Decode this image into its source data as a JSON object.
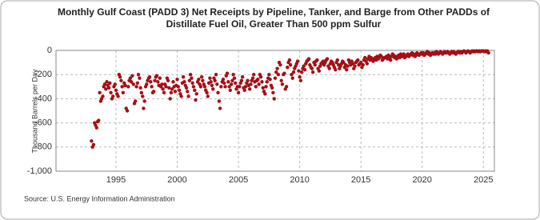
{
  "chart_data": {
    "type": "scatter",
    "title": [
      "Monthly Gulf Coast (PADD 3) Net Receipts by Pipeline, Tanker, and Barge from Other PADDs of",
      "Distillate Fuel Oil, Greater Than 500 ppm Sulfur"
    ],
    "y_label": "Thousand Barrels per Day",
    "source": "Source: U.S. Energy Information Administration",
    "color": "#a50f15",
    "grid": true,
    "xlim": [
      1990.1,
      2025.9
    ],
    "xticks": [
      1995,
      2000,
      2005,
      2010,
      2015,
      2020,
      2025
    ],
    "ylim": [
      -1000,
      0
    ],
    "yticks": [
      {
        "value": -1000,
        "label": "-1,000"
      },
      -800,
      -600,
      -400,
      -200,
      0
    ],
    "x": [
      1993,
      1993.08,
      1993.17,
      1993.25,
      1993.33,
      1993.42,
      1993.5,
      1993.58,
      1993.67,
      1993.75,
      1993.83,
      1993.92,
      1994,
      1994.08,
      1994.17,
      1994.25,
      1994.33,
      1994.42,
      1994.5,
      1994.58,
      1994.67,
      1994.75,
      1994.83,
      1994.92,
      1995,
      1995.08,
      1995.17,
      1995.25,
      1995.33,
      1995.42,
      1995.5,
      1995.58,
      1995.67,
      1995.75,
      1995.83,
      1995.92,
      1996,
      1996.08,
      1996.17,
      1996.25,
      1996.33,
      1996.42,
      1996.5,
      1996.58,
      1996.67,
      1996.75,
      1996.83,
      1996.92,
      1997,
      1997.08,
      1997.17,
      1997.25,
      1997.33,
      1997.42,
      1997.5,
      1997.58,
      1997.67,
      1997.75,
      1997.83,
      1997.92,
      1998,
      1998.08,
      1998.17,
      1998.25,
      1998.33,
      1998.42,
      1998.5,
      1998.58,
      1998.67,
      1998.75,
      1998.83,
      1998.92,
      1999,
      1999.08,
      1999.17,
      1999.25,
      1999.33,
      1999.42,
      1999.5,
      1999.58,
      1999.67,
      1999.75,
      1999.83,
      1999.92,
      2000,
      2000.08,
      2000.17,
      2000.25,
      2000.33,
      2000.42,
      2000.5,
      2000.58,
      2000.67,
      2000.75,
      2000.83,
      2000.92,
      2001,
      2001.08,
      2001.17,
      2001.25,
      2001.33,
      2001.42,
      2001.5,
      2001.58,
      2001.67,
      2001.75,
      2001.83,
      2001.92,
      2002,
      2002.08,
      2002.17,
      2002.25,
      2002.33,
      2002.42,
      2002.5,
      2002.58,
      2002.67,
      2002.75,
      2002.83,
      2002.92,
      2003,
      2003.08,
      2003.17,
      2003.25,
      2003.33,
      2003.42,
      2003.5,
      2003.58,
      2003.67,
      2003.75,
      2003.83,
      2003.92,
      2004,
      2004.08,
      2004.17,
      2004.25,
      2004.33,
      2004.42,
      2004.5,
      2004.58,
      2004.67,
      2004.75,
      2004.83,
      2004.92,
      2005,
      2005.08,
      2005.17,
      2005.25,
      2005.33,
      2005.42,
      2005.5,
      2005.58,
      2005.67,
      2005.75,
      2005.83,
      2005.92,
      2006,
      2006.08,
      2006.17,
      2006.25,
      2006.33,
      2006.42,
      2006.5,
      2006.58,
      2006.67,
      2006.75,
      2006.83,
      2006.92,
      2007,
      2007.08,
      2007.17,
      2007.25,
      2007.33,
      2007.42,
      2007.5,
      2007.58,
      2007.67,
      2007.75,
      2007.83,
      2007.92,
      2008,
      2008.08,
      2008.17,
      2008.25,
      2008.33,
      2008.42,
      2008.5,
      2008.58,
      2008.67,
      2008.75,
      2008.83,
      2008.92,
      2009,
      2009.08,
      2009.17,
      2009.25,
      2009.33,
      2009.42,
      2009.5,
      2009.58,
      2009.67,
      2009.75,
      2009.83,
      2009.92,
      2010,
      2010.08,
      2010.17,
      2010.25,
      2010.33,
      2010.42,
      2010.5,
      2010.58,
      2010.67,
      2010.75,
      2010.83,
      2010.92,
      2011,
      2011.08,
      2011.17,
      2011.25,
      2011.33,
      2011.42,
      2011.5,
      2011.58,
      2011.67,
      2011.75,
      2011.83,
      2011.92,
      2012,
      2012.08,
      2012.17,
      2012.25,
      2012.33,
      2012.42,
      2012.5,
      2012.58,
      2012.67,
      2012.75,
      2012.83,
      2012.92,
      2013,
      2013.08,
      2013.17,
      2013.25,
      2013.33,
      2013.42,
      2013.5,
      2013.58,
      2013.67,
      2013.75,
      2013.83,
      2013.92,
      2014,
      2014.08,
      2014.17,
      2014.25,
      2014.33,
      2014.42,
      2014.5,
      2014.58,
      2014.67,
      2014.75,
      2014.83,
      2014.92,
      2015,
      2015.08,
      2015.17,
      2015.25,
      2015.33,
      2015.42,
      2015.5,
      2015.58,
      2015.67,
      2015.75,
      2015.83,
      2015.92,
      2016,
      2016.08,
      2016.17,
      2016.25,
      2016.33,
      2016.42,
      2016.5,
      2016.58,
      2016.67,
      2016.75,
      2016.83,
      2016.92,
      2017,
      2017.08,
      2017.17,
      2017.25,
      2017.33,
      2017.42,
      2017.5,
      2017.58,
      2017.67,
      2017.75,
      2017.83,
      2017.92,
      2018,
      2018.08,
      2018.17,
      2018.25,
      2018.33,
      2018.42,
      2018.5,
      2018.58,
      2018.67,
      2018.75,
      2018.83,
      2018.92,
      2019,
      2019.08,
      2019.17,
      2019.25,
      2019.33,
      2019.42,
      2019.5,
      2019.58,
      2019.67,
      2019.75,
      2019.83,
      2019.92,
      2020,
      2020.08,
      2020.17,
      2020.25,
      2020.33,
      2020.42,
      2020.5,
      2020.58,
      2020.67,
      2020.75,
      2020.83,
      2020.92,
      2021,
      2021.08,
      2021.17,
      2021.25,
      2021.33,
      2021.42,
      2021.5,
      2021.58,
      2021.67,
      2021.75,
      2021.83,
      2021.92,
      2022,
      2022.08,
      2022.17,
      2022.25,
      2022.33,
      2022.42,
      2022.5,
      2022.58,
      2022.67,
      2022.75,
      2022.83,
      2022.92,
      2023,
      2023.08,
      2023.17,
      2023.25,
      2023.33,
      2023.42,
      2023.5,
      2023.58,
      2023.67,
      2023.75,
      2023.83,
      2023.92,
      2024,
      2024.08,
      2024.17,
      2024.25,
      2024.33,
      2024.42,
      2024.5,
      2024.58,
      2024.67,
      2024.75,
      2024.83,
      2024.92,
      2025,
      2025.08,
      2025.17,
      2025.25,
      2025.33,
      2025.42
    ],
    "values": [
      -750,
      -800,
      -780,
      -600,
      -620,
      -640,
      -590,
      -580,
      -350,
      -420,
      -400,
      -380,
      -300,
      -280,
      -320,
      -260,
      -290,
      -310,
      -270,
      -350,
      -400,
      -380,
      -300,
      -280,
      -330,
      -360,
      -380,
      -200,
      -220,
      -250,
      -300,
      -350,
      -270,
      -290,
      -480,
      -500,
      -300,
      -250,
      -230,
      -260,
      -210,
      -280,
      -440,
      -420,
      -300,
      -270,
      -200,
      -230,
      -310,
      -350,
      -380,
      -480,
      -420,
      -300,
      -280,
      -250,
      -230,
      -220,
      -260,
      -300,
      -350,
      -340,
      -250,
      -220,
      -210,
      -260,
      -290,
      -230,
      -300,
      -280,
      -320,
      -350,
      -280,
      -300,
      -230,
      -250,
      -310,
      -400,
      -350,
      -320,
      -260,
      -300,
      -340,
      -290,
      -240,
      -300,
      -330,
      -360,
      -380,
      -270,
      -220,
      -260,
      -290,
      -310,
      -340,
      -380,
      -250,
      -200,
      -230,
      -270,
      -300,
      -330,
      -410,
      -360,
      -260,
      -240,
      -280,
      -300,
      -220,
      -250,
      -280,
      -300,
      -330,
      -350,
      -380,
      -270,
      -230,
      -260,
      -290,
      -320,
      -230,
      -250,
      -200,
      -280,
      -350,
      -420,
      -480,
      -300,
      -260,
      -240,
      -270,
      -300,
      -210,
      -190,
      -260,
      -300,
      -330,
      -280,
      -250,
      -200,
      -230,
      -270,
      -320,
      -300,
      -350,
      -300,
      -270,
      -250,
      -220,
      -310,
      -330,
      -300,
      -270,
      -250,
      -290,
      -320,
      -280,
      -250,
      -230,
      -200,
      -260,
      -300,
      -250,
      -240,
      -280,
      -200,
      -220,
      -260,
      -310,
      -340,
      -360,
      -300,
      -260,
      -230,
      -200,
      -240,
      -290,
      -310,
      -350,
      -400,
      -230,
      -180,
      -150,
      -200,
      -100,
      -120,
      -250,
      -280,
      -200,
      -190,
      -320,
      -300,
      -140,
      -100,
      -80,
      -120,
      -200,
      -230,
      -180,
      -150,
      -130,
      -110,
      -90,
      -170,
      -220,
      -250,
      -180,
      -150,
      -130,
      -160,
      -110,
      -90,
      -80,
      -70,
      -120,
      -140,
      -150,
      -180,
      -100,
      -120,
      -90,
      -80,
      -150,
      -170,
      -130,
      -110,
      -100,
      -90,
      -120,
      -100,
      -80,
      -70,
      -130,
      -150,
      -110,
      -90,
      -100,
      -120,
      -140,
      -160,
      -100,
      -80,
      -120,
      -150,
      -130,
      -110,
      -90,
      -100,
      -140,
      -120,
      -160,
      -130,
      -80,
      -100,
      -120,
      -90,
      -110,
      -150,
      -130,
      -100,
      -90,
      -80,
      -120,
      -110,
      -100,
      -140,
      -120,
      -80,
      -60,
      -90,
      -110,
      -70,
      -50,
      -80,
      -60,
      -70,
      -90,
      -70,
      -60,
      -80,
      -50,
      -70,
      -60,
      -40,
      -50,
      -80,
      -70,
      -60,
      -60,
      -50,
      -70,
      -40,
      -60,
      -80,
      -50,
      -30,
      -40,
      -60,
      -50,
      -70,
      -50,
      -40,
      -60,
      -30,
      -50,
      -40,
      -30,
      -60,
      -50,
      -40,
      -30,
      -50,
      -40,
      -30,
      -20,
      -40,
      -30,
      -50,
      -40,
      -20,
      -30,
      -40,
      -30,
      -20,
      -30,
      -20,
      -40,
      -30,
      -20,
      -10,
      -30,
      -20,
      -40,
      -30,
      -20,
      -30,
      -20,
      -30,
      -10,
      -20,
      -30,
      -20,
      -10,
      -20,
      -30,
      -20,
      -10,
      -20,
      -20,
      -10,
      -20,
      -30,
      -20,
      -10,
      -20,
      -10,
      -20,
      -30,
      -20,
      -10,
      -10,
      -20,
      -10,
      -20,
      -10,
      -5,
      -10,
      -20,
      -10,
      -5,
      -10,
      -20,
      -10,
      -5,
      -10,
      -5,
      -10,
      -5,
      -5,
      -10,
      -5,
      -10,
      -5,
      -5,
      -5,
      -10,
      -5,
      -10,
      -5,
      -20
    ]
  }
}
